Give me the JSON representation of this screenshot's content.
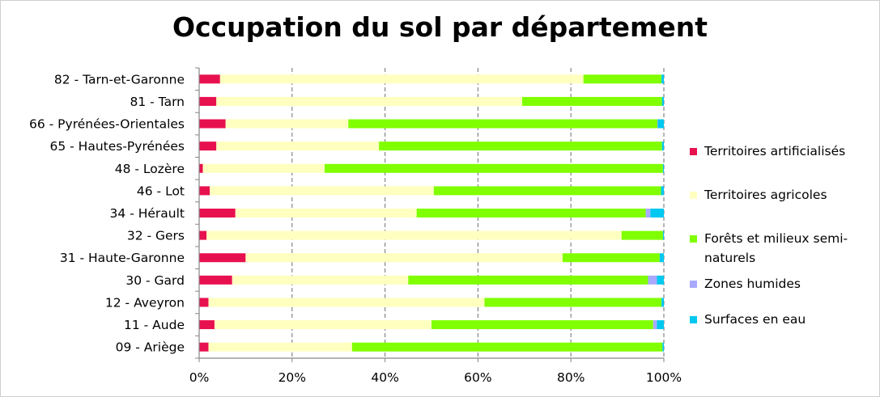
{
  "chart_data": {
    "type": "bar",
    "orientation": "horizontal",
    "stacked": "percent",
    "title": "Occupation du sol par département",
    "xlabel": "",
    "ylabel": "",
    "xlim": [
      0,
      100
    ],
    "x_ticks": [
      "0%",
      "20%",
      "40%",
      "60%",
      "80%",
      "100%"
    ],
    "grid": "vertical-dashed",
    "legend_position": "right",
    "categories": [
      "82 - Tarn-et-Garonne",
      "81 - Tarn",
      "66 - Pyrénées-Orientales",
      "65 - Hautes-Pyrénées",
      "48 - Lozère",
      "46 - Lot",
      "34 - Hérault",
      "32 - Gers",
      "31 - Haute-Garonne",
      "30 - Gard",
      "12 - Aveyron",
      "11 - Aude",
      "09 - Ariège"
    ],
    "series": [
      {
        "name": "Territoires artificialisés",
        "color": "#e8114f",
        "values": [
          4.5,
          3.7,
          5.7,
          3.7,
          0.8,
          2.3,
          7.8,
          1.6,
          10.0,
          7.1,
          2.0,
          3.3,
          2.0
        ]
      },
      {
        "name": "Territoires agricoles",
        "color": "#ffffc0",
        "values": [
          78.2,
          65.8,
          26.4,
          35.0,
          26.2,
          48.2,
          39.0,
          89.3,
          68.2,
          37.9,
          59.4,
          46.7,
          30.9
        ]
      },
      {
        "name": "Forêts et milieux semi-naturels",
        "color": "#80ff00",
        "values": [
          16.8,
          30.1,
          66.5,
          60.9,
          72.8,
          48.9,
          49.3,
          8.9,
          20.9,
          51.6,
          38.1,
          47.7,
          66.8
        ]
      },
      {
        "name": "Zones humides",
        "color": "#a9a9ff",
        "values": [
          0,
          0,
          0.1,
          0,
          0,
          0,
          1.0,
          0,
          0,
          1.9,
          0,
          0.8,
          0
        ]
      },
      {
        "name": "Surfaces en eau",
        "color": "#00c8f0",
        "values": [
          0.5,
          0.4,
          1.3,
          0.4,
          0.2,
          0.6,
          2.9,
          0.2,
          0.9,
          1.5,
          0.5,
          1.5,
          0.3
        ]
      }
    ]
  }
}
